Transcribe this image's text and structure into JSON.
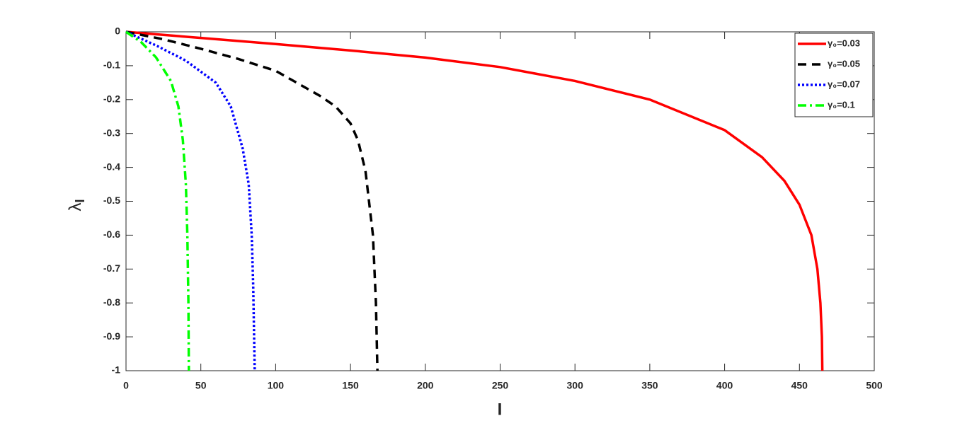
{
  "chart_data": {
    "type": "line",
    "x_label": "I",
    "y_label": "λ",
    "y_label_subscript": "I",
    "xlim": [
      0,
      500
    ],
    "xticks": [
      0,
      50,
      100,
      150,
      200,
      250,
      300,
      350,
      400,
      450,
      500
    ],
    "ylim": [
      -1,
      0
    ],
    "yticks": [
      0,
      -0.1,
      -0.2,
      -0.3,
      -0.4,
      -0.5,
      -0.6,
      -0.7,
      -0.8,
      -0.9,
      -1
    ],
    "legend": "top-right",
    "series": [
      {
        "name": "γ₀=0.03",
        "color": "#ff0000",
        "dash": "solid",
        "x": [
          0,
          50,
          100,
          150,
          200,
          250,
          300,
          350,
          400,
          425,
          440,
          450,
          458,
          462,
          464,
          465,
          465.3
        ],
        "values": [
          0,
          -0.018,
          -0.036,
          -0.055,
          -0.076,
          -0.104,
          -0.145,
          -0.2,
          -0.29,
          -0.37,
          -0.44,
          -0.51,
          -0.6,
          -0.7,
          -0.8,
          -0.9,
          -1
        ]
      },
      {
        "name": "γ₀=0.05",
        "color": "#000000",
        "dash": "dashed",
        "x": [
          0,
          25,
          50,
          75,
          100,
          130,
          140,
          150,
          155,
          160,
          165,
          167,
          168
        ],
        "values": [
          0,
          -0.022,
          -0.05,
          -0.08,
          -0.115,
          -0.19,
          -0.22,
          -0.27,
          -0.32,
          -0.41,
          -0.6,
          -0.8,
          -1
        ]
      },
      {
        "name": "γ₀=0.07",
        "color": "#0000ff",
        "dash": "dotted",
        "x": [
          0,
          20,
          40,
          60,
          70,
          78,
          82,
          84,
          85,
          86
        ],
        "values": [
          0,
          -0.04,
          -0.085,
          -0.15,
          -0.22,
          -0.345,
          -0.45,
          -0.6,
          -0.75,
          -1
        ]
      },
      {
        "name": "γ₀=0.1",
        "color": "#00ff00",
        "dash": "dashdot",
        "x": [
          0,
          10,
          20,
          30,
          35,
          38,
          40,
          41,
          41.7,
          42
        ],
        "values": [
          0,
          -0.03,
          -0.075,
          -0.145,
          -0.22,
          -0.32,
          -0.45,
          -0.6,
          -0.8,
          -1
        ]
      }
    ]
  }
}
